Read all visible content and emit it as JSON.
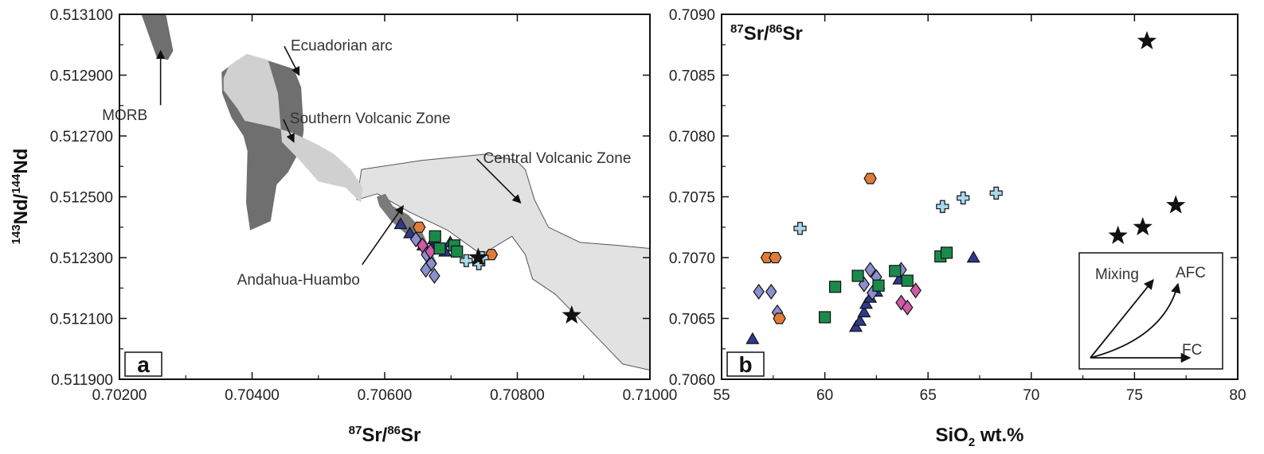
{
  "chart_data": [
    {
      "type": "scatter",
      "panel_label": "a",
      "xlabel": {
        "sup1": "87",
        "main1": "Sr/",
        "sup2": "86",
        "main2": "Sr"
      },
      "ylabel": {
        "sup1": "143",
        "main1": "Nd/",
        "sup2": "144",
        "main2": "Nd"
      },
      "xlim": [
        0.702,
        0.71
      ],
      "ylim": [
        0.5119,
        0.5131
      ],
      "x_ticks": [
        0.702,
        0.704,
        0.706,
        0.708,
        0.71
      ],
      "x_tick_labels": [
        "0.70200",
        "0.70400",
        "0.70600",
        "0.70800",
        "0.71000"
      ],
      "y_ticks": [
        0.5119,
        0.5121,
        0.5123,
        0.5125,
        0.5127,
        0.5129,
        0.5131
      ],
      "y_tick_labels": [
        "0.511900",
        "0.512100",
        "0.512300",
        "0.512500",
        "0.512700",
        "0.512900",
        "0.513100"
      ],
      "fields": [
        {
          "name": "MORB",
          "color": "#6f6f6f",
          "points": [
            [
              0.70233,
              0.5131
            ],
            [
              0.70256,
              0.51296
            ],
            [
              0.70273,
              0.51295
            ],
            [
              0.70281,
              0.51298
            ],
            [
              0.7027,
              0.5131
            ]
          ]
        },
        {
          "name": "Ecuadorian arc",
          "color": "#6f6f6f",
          "points": [
            [
              0.70355,
              0.51284
            ],
            [
              0.70354,
              0.51291
            ],
            [
              0.70378,
              0.51295
            ],
            [
              0.70421,
              0.51295
            ],
            [
              0.70463,
              0.51292
            ],
            [
              0.70474,
              0.51286
            ],
            [
              0.70478,
              0.51272
            ],
            [
              0.70474,
              0.51266
            ],
            [
              0.70454,
              0.51258
            ],
            [
              0.70437,
              0.51254
            ],
            [
              0.70428,
              0.51242
            ],
            [
              0.70397,
              0.51239
            ],
            [
              0.70391,
              0.51248
            ],
            [
              0.70393,
              0.51265
            ],
            [
              0.70387,
              0.5127
            ],
            [
              0.70369,
              0.51276
            ]
          ]
        },
        {
          "name": "Central Volcanic Zone",
          "color": "#e2e2e2",
          "points": [
            [
              0.70558,
              0.51249
            ],
            [
              0.70589,
              0.51251
            ],
            [
              0.70637,
              0.51245
            ],
            [
              0.70695,
              0.51239
            ],
            [
              0.70746,
              0.51231
            ],
            [
              0.70792,
              0.51237
            ],
            [
              0.70812,
              0.51231
            ],
            [
              0.70823,
              0.51223
            ],
            [
              0.70857,
              0.51218
            ],
            [
              0.70884,
              0.51212
            ],
            [
              0.70959,
              0.51195
            ],
            [
              0.71,
              0.51193
            ],
            [
              0.71,
              0.51233
            ],
            [
              0.70953,
              0.51234
            ],
            [
              0.70895,
              0.51235
            ],
            [
              0.70847,
              0.5124
            ],
            [
              0.70826,
              0.51249
            ],
            [
              0.70812,
              0.51259
            ],
            [
              0.70798,
              0.51262
            ],
            [
              0.70751,
              0.51264
            ],
            [
              0.70657,
              0.51262
            ],
            [
              0.70565,
              0.51259
            ]
          ]
        },
        {
          "name": "Southern Volcanic Zone",
          "color": "#d0d0d0",
          "points": [
            [
              0.70357,
              0.51289
            ],
            [
              0.70365,
              0.51293
            ],
            [
              0.70392,
              0.51297
            ],
            [
              0.70424,
              0.51295
            ],
            [
              0.70439,
              0.51284
            ],
            [
              0.70445,
              0.51268
            ],
            [
              0.70472,
              0.51262
            ],
            [
              0.705,
              0.51255
            ],
            [
              0.70541,
              0.51253
            ],
            [
              0.70564,
              0.51248
            ],
            [
              0.70567,
              0.51253
            ],
            [
              0.70549,
              0.51259
            ],
            [
              0.70524,
              0.51264
            ],
            [
              0.705,
              0.51267
            ],
            [
              0.70462,
              0.51271
            ],
            [
              0.70431,
              0.51273
            ],
            [
              0.70389,
              0.51275
            ],
            [
              0.70378,
              0.51279
            ],
            [
              0.70357,
              0.51285
            ]
          ]
        },
        {
          "name": "Andahua-Huambo",
          "color": "#7a7a7a",
          "points": [
            [
              0.70588,
              0.5125
            ],
            [
              0.70601,
              0.51251
            ],
            [
              0.70612,
              0.51247
            ],
            [
              0.70636,
              0.51244
            ],
            [
              0.70653,
              0.5124
            ],
            [
              0.70666,
              0.51234
            ],
            [
              0.70679,
              0.51228
            ],
            [
              0.70672,
              0.51226
            ],
            [
              0.70654,
              0.51233
            ],
            [
              0.70631,
              0.51238
            ],
            [
              0.7061,
              0.51242
            ],
            [
              0.70592,
              0.51247
            ]
          ]
        }
      ],
      "annotations": [
        {
          "text": "MORB",
          "target": [
            0.70262,
            0.51298
          ],
          "label_at": [
            0.70208,
            0.51277
          ]
        },
        {
          "text": "Ecuadorian arc",
          "target": [
            0.70471,
            0.5129
          ],
          "label_at": [
            0.70535,
            0.513
          ]
        },
        {
          "text": "Southern Volcanic Zone",
          "target": [
            0.70463,
            0.51268
          ],
          "label_at": [
            0.70578,
            0.51276
          ]
        },
        {
          "text": "Central Volcanic Zone",
          "target": [
            0.70805,
            0.51248
          ],
          "label_at": [
            0.7086,
            0.51263
          ]
        },
        {
          "text": "Andahua-Huambo",
          "target": [
            0.70628,
            0.51247
          ],
          "label_at": [
            0.7047,
            0.51223
          ]
        }
      ],
      "series": [
        {
          "marker": "triangle",
          "color": "#2d3a8c",
          "points": [
            [
              0.70624,
              0.51241
            ],
            [
              0.70638,
              0.51238
            ],
            [
              0.70658,
              0.51234
            ],
            [
              0.70671,
              0.51233
            ],
            [
              0.70674,
              0.51236
            ],
            [
              0.70691,
              0.51232
            ],
            [
              0.70699,
              0.51235
            ]
          ]
        },
        {
          "marker": "diamond",
          "color": "#8a8fcf",
          "points": [
            [
              0.70647,
              0.51236
            ],
            [
              0.70663,
              0.51231
            ],
            [
              0.7067,
              0.51228
            ],
            [
              0.70675,
              0.51224
            ],
            [
              0.70662,
              0.51226
            ]
          ]
        },
        {
          "marker": "diamond",
          "color": "#d05aa8",
          "points": [
            [
              0.70657,
              0.51234
            ],
            [
              0.70669,
              0.51232
            ]
          ]
        },
        {
          "marker": "square",
          "color": "#1a8a4a",
          "points": [
            [
              0.70676,
              0.51237
            ],
            [
              0.70683,
              0.51233
            ],
            [
              0.70705,
              0.51234
            ],
            [
              0.70709,
              0.51232
            ]
          ]
        },
        {
          "marker": "hexagon",
          "color": "#e07b39",
          "points": [
            [
              0.70652,
              0.5124
            ],
            [
              0.70761,
              0.51231
            ]
          ]
        },
        {
          "marker": "cross",
          "color": "#a8d8ec",
          "points": [
            [
              0.70723,
              0.51229
            ],
            [
              0.70742,
              0.51228
            ],
            [
              0.70747,
              0.5123
            ]
          ]
        },
        {
          "marker": "star",
          "color": "#111111",
          "points": [
            [
              0.70741,
              0.5123
            ],
            [
              0.70882,
              0.51211
            ]
          ]
        }
      ]
    },
    {
      "type": "scatter",
      "panel_label": "b",
      "xlabel": {
        "main1": "SiO",
        "sub": "2",
        "main2": " wt.%"
      },
      "ylabel": {
        "sup1": "87",
        "main1": "Sr/",
        "sup2": "86",
        "main2": "Sr"
      },
      "xlim": [
        55,
        80
      ],
      "ylim": [
        0.706,
        0.709
      ],
      "x_ticks": [
        55,
        60,
        65,
        70,
        75,
        80
      ],
      "x_tick_labels": [
        "55",
        "60",
        "65",
        "70",
        "75",
        "80"
      ],
      "y_ticks": [
        0.706,
        0.7065,
        0.707,
        0.7075,
        0.708,
        0.7085,
        0.709
      ],
      "y_tick_labels": [
        "0.7060",
        "0.7065",
        "0.7070",
        "0.7075",
        "0.7080",
        "0.7085",
        "0.7090"
      ],
      "inset": {
        "labels": [
          "Mixing",
          "AFC",
          "FC"
        ]
      },
      "series": [
        {
          "marker": "triangle",
          "color": "#2d3a8c",
          "points": [
            [
              56.5,
              0.70633
            ],
            [
              61.5,
              0.70643
            ],
            [
              61.7,
              0.70648
            ],
            [
              61.9,
              0.70655
            ],
            [
              62.0,
              0.70662
            ],
            [
              62.2,
              0.70667
            ],
            [
              62.5,
              0.70672
            ],
            [
              62.6,
              0.70678
            ],
            [
              63.6,
              0.70682
            ],
            [
              67.2,
              0.707
            ]
          ]
        },
        {
          "marker": "diamond",
          "color": "#8a8fcf",
          "points": [
            [
              56.8,
              0.70672
            ],
            [
              57.4,
              0.70672
            ],
            [
              57.7,
              0.70655
            ],
            [
              61.9,
              0.70678
            ],
            [
              62.2,
              0.7069
            ],
            [
              62.5,
              0.70684
            ],
            [
              63.7,
              0.7069
            ],
            [
              62.3,
              0.70671
            ]
          ]
        },
        {
          "marker": "diamond",
          "color": "#d05aa8",
          "points": [
            [
              63.7,
              0.70663
            ],
            [
              64.0,
              0.70659
            ],
            [
              64.4,
              0.70673
            ]
          ]
        },
        {
          "marker": "square",
          "color": "#1a8a4a",
          "points": [
            [
              60.0,
              0.70651
            ],
            [
              60.5,
              0.70676
            ],
            [
              61.6,
              0.70685
            ],
            [
              62.6,
              0.70677
            ],
            [
              63.4,
              0.70689
            ],
            [
              64.0,
              0.70681
            ],
            [
              65.6,
              0.70701
            ],
            [
              65.9,
              0.70704
            ]
          ]
        },
        {
          "marker": "hexagon",
          "color": "#e07b39",
          "points": [
            [
              57.2,
              0.707
            ],
            [
              57.6,
              0.707
            ],
            [
              57.8,
              0.7065
            ],
            [
              62.2,
              0.70765
            ]
          ]
        },
        {
          "marker": "cross",
          "color": "#a8d8ec",
          "points": [
            [
              58.8,
              0.70724
            ],
            [
              65.7,
              0.70742
            ],
            [
              66.7,
              0.70749
            ],
            [
              68.3,
              0.70753
            ]
          ]
        },
        {
          "marker": "star",
          "color": "#111111",
          "points": [
            [
              74.2,
              0.70718
            ],
            [
              75.4,
              0.70725
            ],
            [
              77.0,
              0.70743
            ],
            [
              75.6,
              0.70878
            ]
          ]
        }
      ]
    }
  ]
}
